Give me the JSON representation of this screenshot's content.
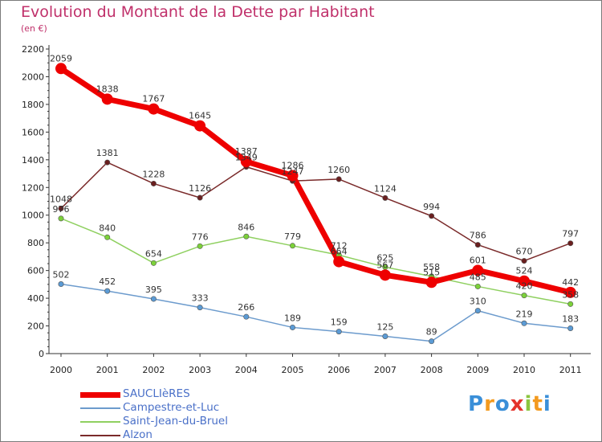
{
  "header": {
    "title": "Evolution du Montant de la Dette par Habitant",
    "subtitle": "(en €)"
  },
  "logo": {
    "text": "Proxiti",
    "letters": [
      "P",
      "r",
      "o",
      "x",
      "i",
      "t",
      "i"
    ],
    "colors": [
      "#3a8fd8",
      "#f39a1e",
      "#3a8fd8",
      "#e4332b",
      "#8bc53f",
      "#f39a1e",
      "#3a8fd8"
    ]
  },
  "chart_data": {
    "type": "line",
    "title": "Evolution du Montant de la Dette par Habitant",
    "subtitle": "(en €)",
    "xlabel": "",
    "ylabel": "",
    "x": [
      "2000",
      "2001",
      "2002",
      "2003",
      "2004",
      "2005",
      "2006",
      "2007",
      "2008",
      "2009",
      "2010",
      "2011"
    ],
    "ylim": [
      0,
      2200
    ],
    "yticks": [
      0,
      200,
      400,
      600,
      800,
      1000,
      1200,
      1400,
      1600,
      1800,
      2000,
      2200
    ],
    "grid": false,
    "legend_position": "bottom-left",
    "series": [
      {
        "name": "SAUCLIèRES",
        "color": "#ee0000",
        "values": [
          2059,
          1838,
          1767,
          1645,
          1387,
          1286,
          664,
          567,
          515,
          601,
          524,
          442
        ],
        "labels": [
          "2059",
          "1838",
          "1767",
          "1645",
          "1387",
          "1286",
          "664",
          "567",
          "515",
          "601",
          "524",
          "442"
        ]
      },
      {
        "name": "Campestre-et-Luc",
        "color": "#6c9bcd",
        "values": [
          502,
          452,
          395,
          333,
          266,
          189,
          159,
          125,
          89,
          310,
          219,
          183
        ],
        "labels": [
          "502",
          "452",
          "395",
          "333",
          "266",
          "189",
          "159",
          "125",
          "89",
          "310",
          "219",
          "183"
        ]
      },
      {
        "name": "Saint-Jean-du-Bruel",
        "color": "#8fd060",
        "values": [
          976,
          840,
          654,
          776,
          846,
          779,
          712,
          625,
          558,
          485,
          420,
          358
        ],
        "labels": [
          "976",
          "840",
          "654",
          "776",
          "846",
          "779",
          "712",
          "625",
          "558",
          "485",
          "420",
          "358"
        ]
      },
      {
        "name": "Alzon",
        "color": "#7a2a2a",
        "values": [
          1048,
          1381,
          1228,
          1126,
          1349,
          1247,
          1260,
          1124,
          994,
          786,
          670,
          797
        ],
        "labels": [
          "1048",
          "1381",
          "1228",
          "1126",
          "1349",
          "1247",
          "1260",
          "1124",
          "994",
          "786",
          "670",
          "797"
        ]
      }
    ]
  }
}
